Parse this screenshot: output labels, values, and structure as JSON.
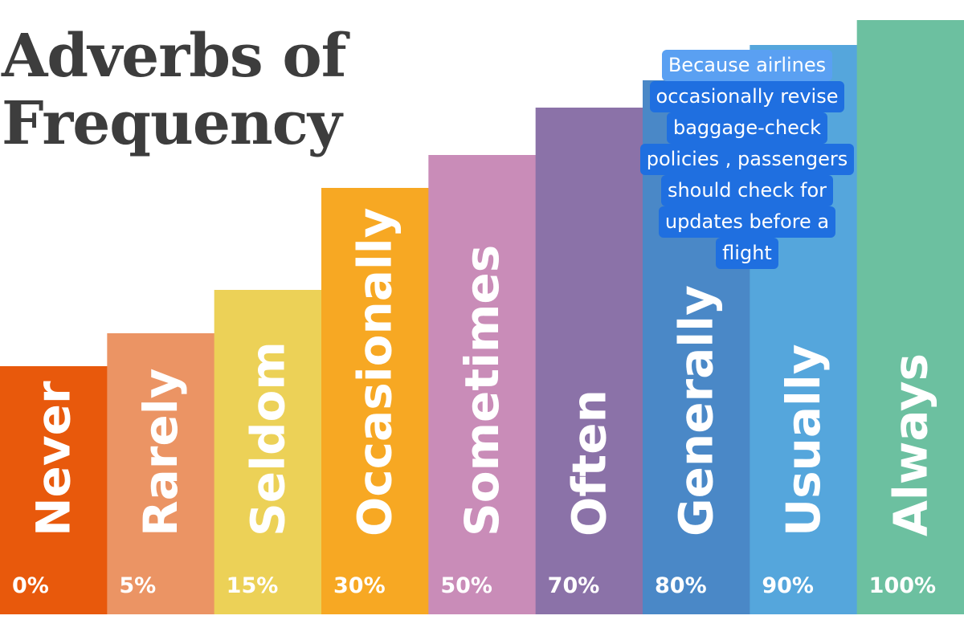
{
  "chart_data": {
    "type": "bar",
    "title": "Adverbs of Frequency",
    "title_lines": [
      "Adverbs of",
      "Frequency"
    ],
    "categories": [
      "Never",
      "Rarely",
      "Seldom",
      "Occasionally",
      "Sometimes",
      "Often",
      "Generally",
      "Usually",
      "Always"
    ],
    "value_labels": [
      "0%",
      "5%",
      "15%",
      "30%",
      "50%",
      "70%",
      "80%",
      "90%",
      "100%"
    ],
    "colors": [
      "#e8590c",
      "#eb9464",
      "#ecd157",
      "#f7a823",
      "#c98cb8",
      "#8b72a8",
      "#4a88c7",
      "#55a6dc",
      "#6cc0a0"
    ],
    "xlabel": "",
    "ylabel": "",
    "grid": false,
    "legend": "none"
  },
  "note": {
    "lines": [
      "Because airlines",
      "occasionally revise",
      "baggage-check",
      "policies , passengers",
      "should check for",
      "updates before a",
      "flight"
    ]
  }
}
